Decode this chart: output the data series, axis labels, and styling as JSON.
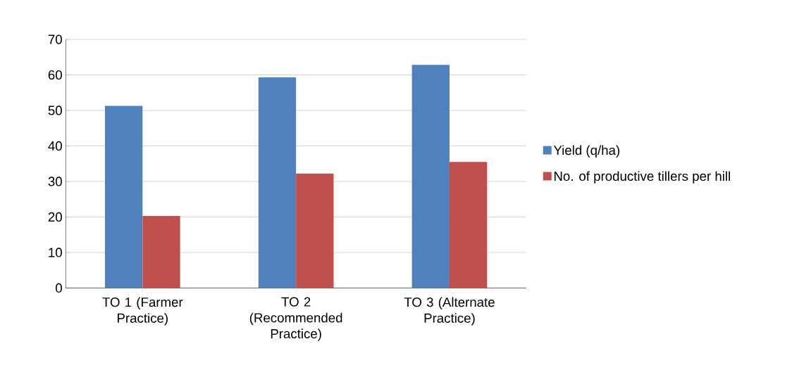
{
  "chart_data": {
    "type": "bar",
    "categories": [
      "TO 1 (Farmer Practice)",
      "TO 2 (Recommended Practice)",
      "TO 3 (Alternate Practice)"
    ],
    "series": [
      {
        "name": "Yield (q/ha)",
        "color": "#4f81bd",
        "values": [
          51.3,
          59.3,
          62.8
        ]
      },
      {
        "name": "No. of productive tillers  per hill",
        "color": "#c0504d",
        "values": [
          20.3,
          32.2,
          35.5
        ]
      }
    ],
    "ylim": [
      0,
      70
    ],
    "yticks": [
      0,
      10,
      20,
      30,
      40,
      50,
      60,
      70
    ],
    "grid": "y",
    "legend": "right"
  }
}
